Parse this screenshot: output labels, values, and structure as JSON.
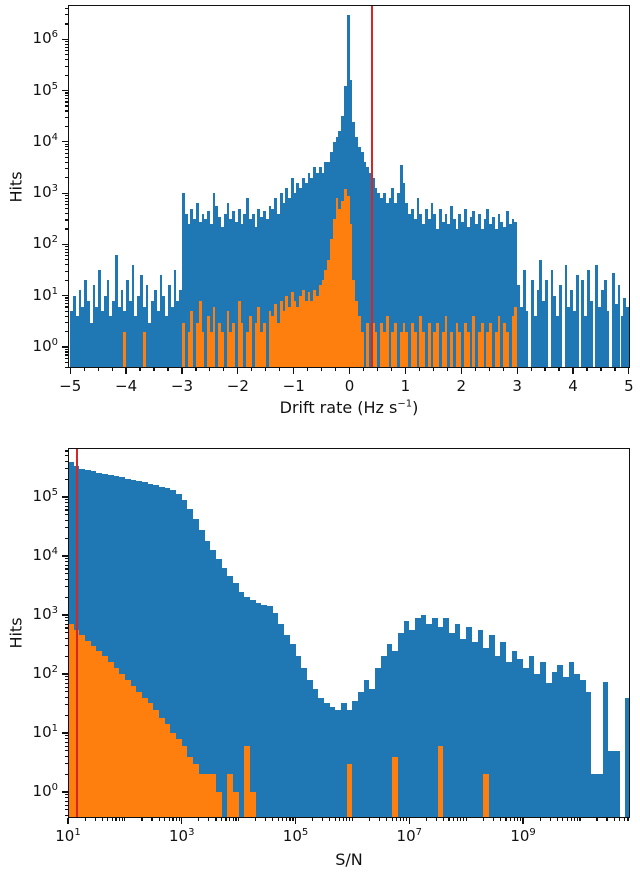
{
  "figure": {
    "background": "#ffffff",
    "colors": {
      "blue": "#1f77b4",
      "orange": "#ff7f0e",
      "red": "#d62728",
      "axis": "#111111"
    }
  },
  "chart_data": [
    {
      "type": "bar",
      "subtype": "histogram-overlaid",
      "title": "",
      "ylabel": "Hits",
      "xlabel_pre": "Drift rate (Hz s",
      "xlabel_sup": "−1",
      "xlabel_post": ")",
      "x_scale": "linear",
      "y_scale": "log",
      "xlim": [
        -5.04,
        5.02
      ],
      "ylim_log": [
        -0.41,
        6.67
      ],
      "x_tick_values": [
        -5,
        -4,
        -3,
        -2,
        -1,
        0,
        1,
        2,
        3,
        4,
        5
      ],
      "x_tick_labels": [
        "−5",
        "−4",
        "−3",
        "−2",
        "−1",
        "0",
        "1",
        "2",
        "3",
        "4",
        "5"
      ],
      "x_minor_step": 0.25,
      "y_tick_exponents": [
        0,
        1,
        2,
        3,
        4,
        5,
        6
      ],
      "grid": false,
      "legend": "none",
      "threshold_line": {
        "x": 0.4,
        "color": "#d62728"
      },
      "bin_start": -5.0,
      "bin_width": 0.05,
      "series": [
        {
          "name": "blue-series",
          "color": "#1f77b4",
          "values": [
            5,
            10,
            4,
            13,
            6,
            20,
            8,
            3,
            16,
            6,
            32,
            5,
            10,
            20,
            4,
            8,
            63,
            6,
            13,
            5,
            20,
            8,
            40,
            4,
            10,
            25,
            6,
            16,
            3,
            8,
            13,
            5,
            25,
            10,
            4,
            16,
            6,
            32,
            8,
            13,
            1000,
            400,
            250,
            500,
            320,
            630,
            280,
            400,
            320,
            450,
            250,
            1000,
            560,
            350,
            220,
            400,
            630,
            320,
            450,
            280,
            500,
            250,
            400,
            800,
            320,
            400,
            220,
            500,
            350,
            450,
            320,
            560,
            500,
            800,
            400,
            1000,
            630,
            1250,
            800,
            2000,
            1000,
            1600,
            1250,
            2000,
            1600,
            2500,
            2000,
            3200,
            2500,
            3200,
            2500,
            4000,
            4000,
            6300,
            10000,
            12500,
            16000,
            32000,
            125000,
            3000000,
            160000,
            25000,
            12500,
            8000,
            6300,
            4000,
            3200,
            2500,
            2000,
            1250,
            1000,
            800,
            1000,
            630,
            800,
            1250,
            630,
            1000,
            3500,
            1600,
            630,
            400,
            500,
            320,
            800,
            400,
            250,
            500,
            320,
            630,
            400,
            200,
            500,
            280,
            400,
            250,
            560,
            320,
            200,
            400,
            280,
            500,
            220,
            350,
            450,
            250,
            400,
            200,
            320,
            500,
            250,
            350,
            200,
            400,
            280,
            220,
            450,
            250,
            320,
            280,
            16,
            6,
            32,
            5,
            0,
            20,
            4,
            13,
            50,
            8,
            20,
            0,
            32,
            10,
            4,
            16,
            0,
            40,
            6,
            13,
            5,
            25,
            0,
            20,
            4,
            32,
            8,
            0,
            40,
            6,
            13,
            20,
            5,
            0,
            28,
            7,
            16,
            4,
            9,
            6
          ]
        },
        {
          "name": "orange-series",
          "color": "#ff7f0e",
          "values": [
            0,
            0,
            0,
            0,
            0,
            0,
            0,
            0,
            0,
            0,
            0,
            0,
            0,
            0,
            0,
            0,
            0,
            0,
            0,
            2,
            0,
            0,
            0,
            0,
            0,
            0,
            2,
            0,
            0,
            0,
            0,
            0,
            0,
            0,
            0,
            0,
            0,
            0,
            0,
            0,
            3,
            0,
            2,
            5,
            0,
            3,
            8,
            2,
            0,
            4,
            2,
            6,
            0,
            3,
            2,
            0,
            5,
            2,
            3,
            0,
            8,
            3,
            0,
            2,
            4,
            0,
            3,
            6,
            2,
            3,
            0,
            5,
            4,
            7,
            3,
            8,
            5,
            10,
            6,
            12,
            8,
            6,
            10,
            13,
            8,
            12,
            8,
            13,
            10,
            16,
            20,
            32,
            50,
            125,
            320,
            800,
            500,
            700,
            1200,
            900,
            250,
            20,
            8,
            4,
            2,
            0,
            3,
            0,
            3,
            2,
            0,
            3,
            2,
            4,
            0,
            2,
            3,
            0,
            2,
            3,
            2,
            0,
            3,
            2,
            0,
            4,
            2,
            0,
            3,
            0,
            2,
            3,
            0,
            2,
            4,
            0,
            2,
            0,
            3,
            2,
            0,
            3,
            2,
            0,
            4,
            0,
            2,
            3,
            0,
            2,
            3,
            0,
            2,
            4,
            0,
            3,
            2,
            0,
            4,
            6,
            0,
            0,
            0,
            0,
            0,
            0,
            0,
            0,
            0,
            0,
            0,
            0,
            0,
            0,
            0,
            0,
            0,
            0,
            0,
            0,
            0,
            0,
            0,
            0,
            0,
            0,
            0,
            0,
            0,
            0,
            0,
            0,
            0,
            0,
            0,
            0,
            0,
            0,
            0,
            0
          ]
        }
      ]
    },
    {
      "type": "bar",
      "subtype": "histogram-overlaid",
      "title": "",
      "ylabel": "Hits",
      "xlabel": "S/N",
      "x_scale": "log",
      "y_scale": "log",
      "xlim_log": [
        1.0,
        10.88
      ],
      "ylim_log": [
        -0.44,
        5.83
      ],
      "x_tick_exponents": [
        1,
        3,
        5,
        7,
        9
      ],
      "y_tick_exponents": [
        0,
        1,
        2,
        3,
        4,
        5
      ],
      "grid": false,
      "legend": "none",
      "threshold_line": {
        "x": 14.4,
        "color": "#d62728"
      },
      "bin_start_log": 1.0,
      "bin_width_log": 0.1,
      "series": [
        {
          "name": "blue-series",
          "color": "#1f77b4",
          "values": [
            390000,
            330000,
            300000,
            290000,
            275000,
            260000,
            250000,
            240000,
            230000,
            215000,
            205000,
            195000,
            185000,
            178000,
            165000,
            158000,
            150000,
            140000,
            132000,
            112000,
            90000,
            63000,
            42000,
            28000,
            18000,
            12500,
            9000,
            6300,
            4500,
            3500,
            2500,
            2000,
            1800,
            1600,
            1500,
            1400,
            1100,
            700,
            450,
            320,
            200,
            125,
            80,
            56,
            40,
            32,
            28,
            25,
            32,
            25,
            35,
            50,
            80,
            56,
            125,
            200,
            320,
            250,
            500,
            800,
            560,
            900,
            1000,
            700,
            900,
            630,
            900,
            500,
            700,
            400,
            630,
            350,
            560,
            280,
            450,
            200,
            350,
            160,
            250,
            180,
            125,
            200,
            100,
            160,
            70,
            110,
            140,
            90,
            160,
            100,
            80,
            50,
            2,
            2,
            74,
            5,
            5,
            0,
            40
          ]
        },
        {
          "name": "orange-series",
          "color": "#ff7f0e",
          "values": [
            700,
            560,
            450,
            360,
            300,
            250,
            200,
            160,
            125,
            100,
            80,
            63,
            50,
            40,
            32,
            25,
            18,
            14,
            10,
            8,
            6,
            4,
            3,
            2,
            2,
            2,
            1,
            0,
            2,
            1,
            0,
            6,
            1,
            0,
            0,
            0,
            0,
            0,
            0,
            0,
            0,
            0,
            0,
            0,
            0,
            0,
            0,
            0,
            0,
            3,
            0,
            0,
            0,
            0,
            0,
            0,
            0,
            4,
            0,
            0,
            0,
            0,
            0,
            0,
            0,
            6,
            0,
            0,
            0,
            0,
            0,
            0,
            0,
            2,
            0,
            0,
            0,
            0,
            0,
            0,
            0,
            0,
            0,
            0,
            0,
            0,
            0,
            0,
            0,
            0,
            0,
            0,
            0,
            0,
            0,
            0,
            0,
            0,
            0
          ]
        }
      ]
    }
  ]
}
